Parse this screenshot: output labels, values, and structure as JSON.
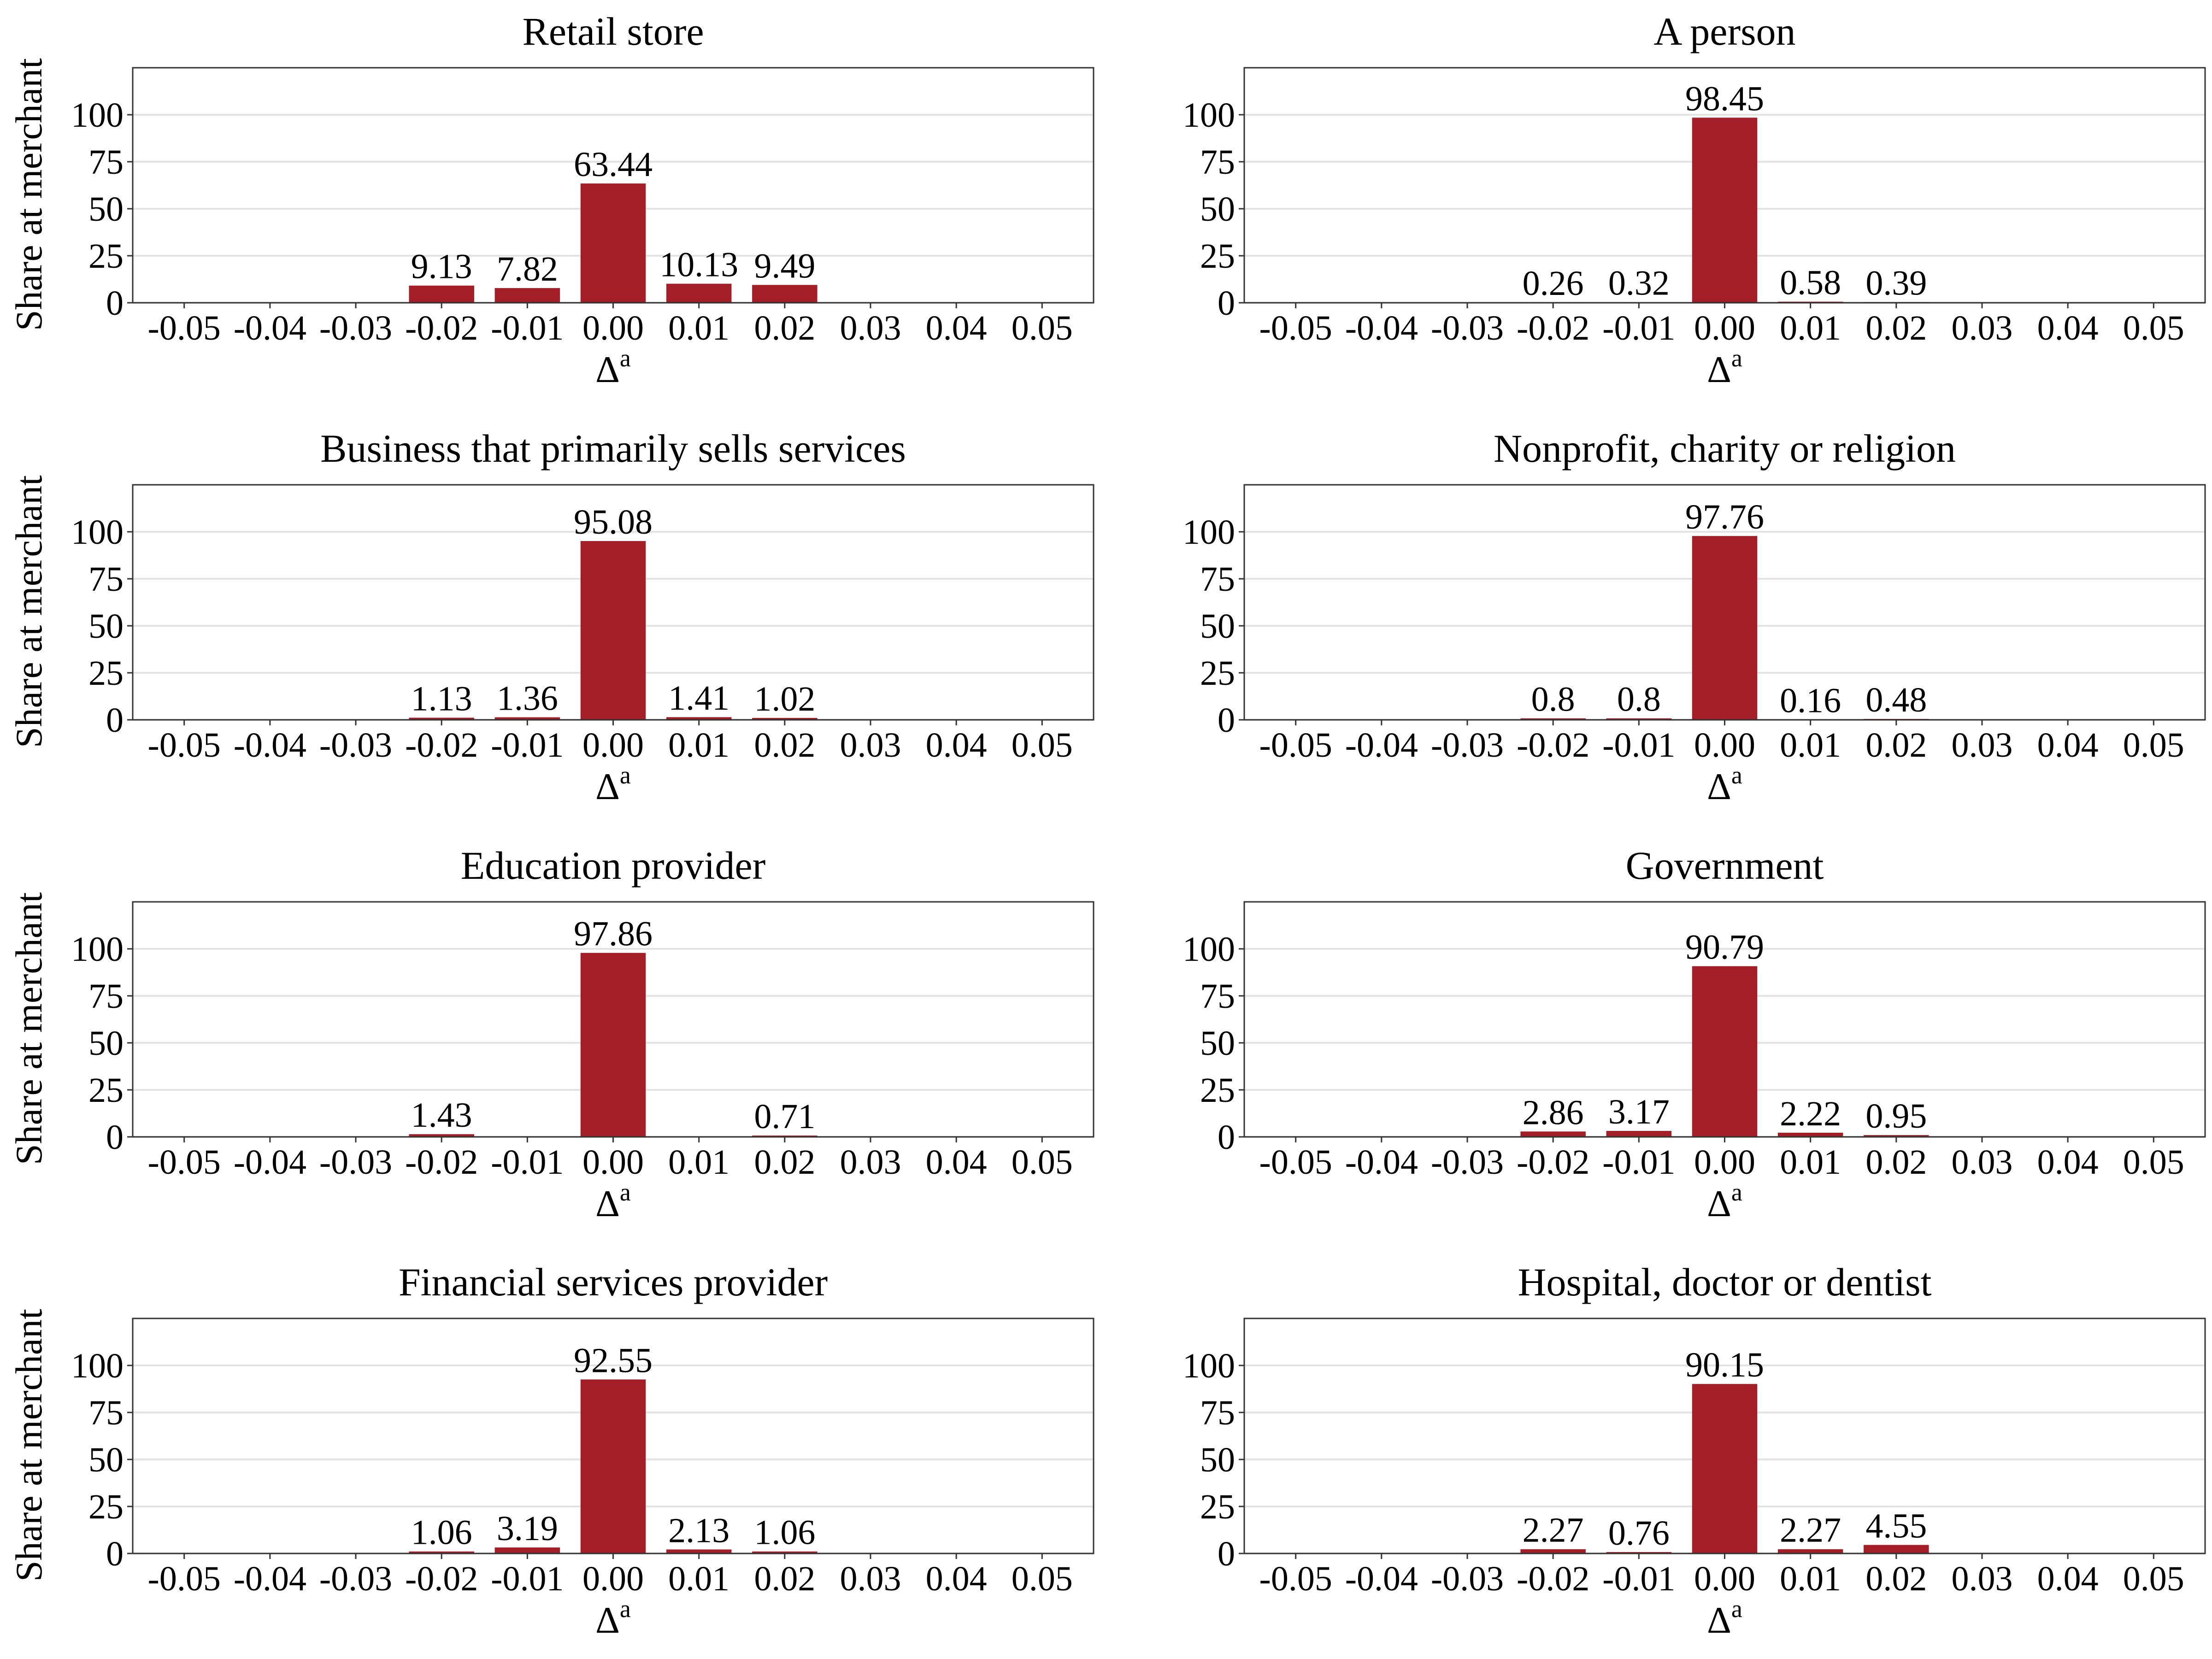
{
  "chart_data": [
    {
      "type": "bar",
      "title": "Retail store",
      "xlabel": "Δ",
      "xlabel_sup": "a",
      "ylabel": "Share at merchant",
      "ylim": [
        0,
        125
      ],
      "yticks": [
        0,
        25,
        50,
        75,
        100
      ],
      "categories": [
        "-0.05",
        "-0.04",
        "-0.03",
        "-0.02",
        "-0.01",
        "0.00",
        "0.01",
        "0.02",
        "0.03",
        "0.04",
        "0.05"
      ],
      "values": [
        null,
        null,
        null,
        9.13,
        7.82,
        63.44,
        10.13,
        9.49,
        null,
        null,
        null
      ],
      "labels": [
        "",
        "",
        "",
        "9.13",
        "7.82",
        "63.44",
        "10.13",
        "9.49",
        "",
        "",
        ""
      ],
      "bar_color": "#A31E26",
      "grid": true
    },
    {
      "type": "bar",
      "title": "A person",
      "xlabel": "Δ",
      "xlabel_sup": "a",
      "ylabel": "",
      "ylim": [
        0,
        125
      ],
      "yticks": [
        0,
        25,
        50,
        75,
        100
      ],
      "categories": [
        "-0.05",
        "-0.04",
        "-0.03",
        "-0.02",
        "-0.01",
        "0.00",
        "0.01",
        "0.02",
        "0.03",
        "0.04",
        "0.05"
      ],
      "values": [
        null,
        null,
        null,
        0.26,
        0.32,
        98.45,
        0.58,
        0.39,
        null,
        null,
        null
      ],
      "labels": [
        "",
        "",
        "",
        "0.26",
        "0.32",
        "98.45",
        "0.58",
        "0.39",
        "",
        "",
        ""
      ],
      "bar_color": "#A31E26",
      "grid": true
    },
    {
      "type": "bar",
      "title": "Business that primarily sells services",
      "xlabel": "Δ",
      "xlabel_sup": "a",
      "ylabel": "Share at merchant",
      "ylim": [
        0,
        125
      ],
      "yticks": [
        0,
        25,
        50,
        75,
        100
      ],
      "categories": [
        "-0.05",
        "-0.04",
        "-0.03",
        "-0.02",
        "-0.01",
        "0.00",
        "0.01",
        "0.02",
        "0.03",
        "0.04",
        "0.05"
      ],
      "values": [
        null,
        null,
        null,
        1.13,
        1.36,
        95.08,
        1.41,
        1.02,
        null,
        null,
        null
      ],
      "labels": [
        "",
        "",
        "",
        "1.13",
        "1.36",
        "95.08",
        "1.41",
        "1.02",
        "",
        "",
        ""
      ],
      "bar_color": "#A31E26",
      "grid": true
    },
    {
      "type": "bar",
      "title": "Nonprofit, charity or religion",
      "xlabel": "Δ",
      "xlabel_sup": "a",
      "ylabel": "",
      "ylim": [
        0,
        125
      ],
      "yticks": [
        0,
        25,
        50,
        75,
        100
      ],
      "categories": [
        "-0.05",
        "-0.04",
        "-0.03",
        "-0.02",
        "-0.01",
        "0.00",
        "0.01",
        "0.02",
        "0.03",
        "0.04",
        "0.05"
      ],
      "values": [
        null,
        null,
        null,
        0.8,
        0.8,
        97.76,
        0.16,
        0.48,
        null,
        null,
        null
      ],
      "labels": [
        "",
        "",
        "",
        "0.8",
        "0.8",
        "97.76",
        "0.16",
        "0.48",
        "",
        "",
        ""
      ],
      "bar_color": "#A31E26",
      "grid": true
    },
    {
      "type": "bar",
      "title": "Education provider",
      "xlabel": "Δ",
      "xlabel_sup": "a",
      "ylabel": "Share at merchant",
      "ylim": [
        0,
        125
      ],
      "yticks": [
        0,
        25,
        50,
        75,
        100
      ],
      "categories": [
        "-0.05",
        "-0.04",
        "-0.03",
        "-0.02",
        "-0.01",
        "0.00",
        "0.01",
        "0.02",
        "0.03",
        "0.04",
        "0.05"
      ],
      "values": [
        null,
        null,
        null,
        1.43,
        null,
        97.86,
        null,
        0.71,
        null,
        null,
        null
      ],
      "labels": [
        "",
        "",
        "",
        "1.43",
        "",
        "97.86",
        "",
        "0.71",
        "",
        "",
        ""
      ],
      "bar_color": "#A31E26",
      "grid": true
    },
    {
      "type": "bar",
      "title": "Government",
      "xlabel": "Δ",
      "xlabel_sup": "a",
      "ylabel": "",
      "ylim": [
        0,
        125
      ],
      "yticks": [
        0,
        25,
        50,
        75,
        100
      ],
      "categories": [
        "-0.05",
        "-0.04",
        "-0.03",
        "-0.02",
        "-0.01",
        "0.00",
        "0.01",
        "0.02",
        "0.03",
        "0.04",
        "0.05"
      ],
      "values": [
        null,
        null,
        null,
        2.86,
        3.17,
        90.79,
        2.22,
        0.95,
        null,
        null,
        null
      ],
      "labels": [
        "",
        "",
        "",
        "2.86",
        "3.17",
        "90.79",
        "2.22",
        "0.95",
        "",
        "",
        ""
      ],
      "bar_color": "#A31E26",
      "grid": true
    },
    {
      "type": "bar",
      "title": "Financial services provider",
      "xlabel": "Δ",
      "xlabel_sup": "a",
      "ylabel": "Share at merchant",
      "ylim": [
        0,
        125
      ],
      "yticks": [
        0,
        25,
        50,
        75,
        100
      ],
      "categories": [
        "-0.05",
        "-0.04",
        "-0.03",
        "-0.02",
        "-0.01",
        "0.00",
        "0.01",
        "0.02",
        "0.03",
        "0.04",
        "0.05"
      ],
      "values": [
        null,
        null,
        null,
        1.06,
        3.19,
        92.55,
        2.13,
        1.06,
        null,
        null,
        null
      ],
      "labels": [
        "",
        "",
        "",
        "1.06",
        "3.19",
        "92.55",
        "2.13",
        "1.06",
        "",
        "",
        ""
      ],
      "bar_color": "#A31E26",
      "grid": true
    },
    {
      "type": "bar",
      "title": "Hospital, doctor or dentist",
      "xlabel": "Δ",
      "xlabel_sup": "a",
      "ylabel": "",
      "ylim": [
        0,
        125
      ],
      "yticks": [
        0,
        25,
        50,
        75,
        100
      ],
      "categories": [
        "-0.05",
        "-0.04",
        "-0.03",
        "-0.02",
        "-0.01",
        "0.00",
        "0.01",
        "0.02",
        "0.03",
        "0.04",
        "0.05"
      ],
      "values": [
        null,
        null,
        null,
        2.27,
        0.76,
        90.15,
        2.27,
        4.55,
        null,
        null,
        null
      ],
      "labels": [
        "",
        "",
        "",
        "2.27",
        "0.76",
        "90.15",
        "2.27",
        "4.55",
        "",
        "",
        ""
      ],
      "bar_color": "#A31E26",
      "grid": true
    }
  ]
}
